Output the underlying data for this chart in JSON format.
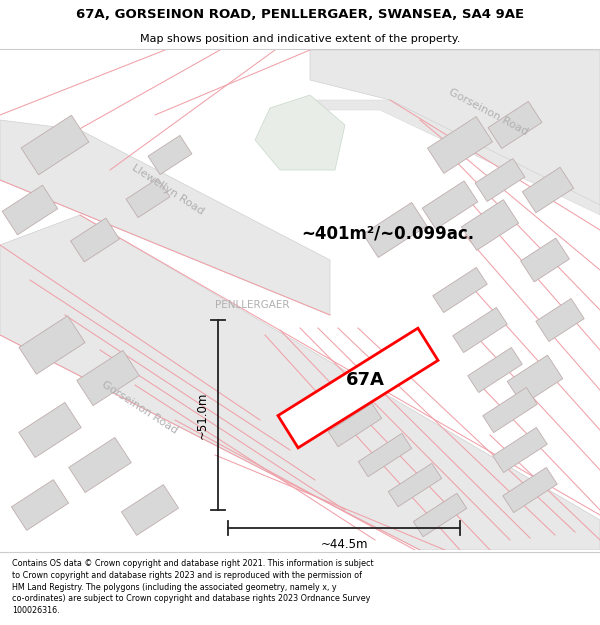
{
  "title": "67A, GORSEINON ROAD, PENLLERGAER, SWANSEA, SA4 9AE",
  "subtitle": "Map shows position and indicative extent of the property.",
  "area_text": "~401m²/~0.099ac.",
  "label_67a": "67A",
  "label_penllergaer": "PENLLERGAER",
  "dim_vertical": "~51.0m",
  "dim_horizontal": "~44.5m",
  "road_label_gorseinon_upper": "Gorseinon Road",
  "road_label_gorseinon_lower": "Gorseinon Road",
  "road_label_llewellyn": "Llewellyn Road",
  "footer_text": "Contains OS data © Crown copyright and database right 2021. This information is subject to Crown copyright and database rights 2023 and is reproduced with the permission of HM Land Registry. The polygons (including the associated geometry, namely x, y co-ordinates) are subject to Crown copyright and database rights 2023 Ordnance Survey 100026316.",
  "map_bg": "#f7f7f7",
  "road_fill": "#e8e8e8",
  "building_fill": "#d8d8d8",
  "building_edge": "#bbaaaa",
  "property_color": "#ff0000",
  "property_fill": "#ffffff",
  "green_fill": "#e8ede8",
  "cadastral_color": "#f0a0a8",
  "dim_color": "#222222",
  "road_text_color": "#b0b0b0",
  "penllergaer_color": "#b0b0b0"
}
